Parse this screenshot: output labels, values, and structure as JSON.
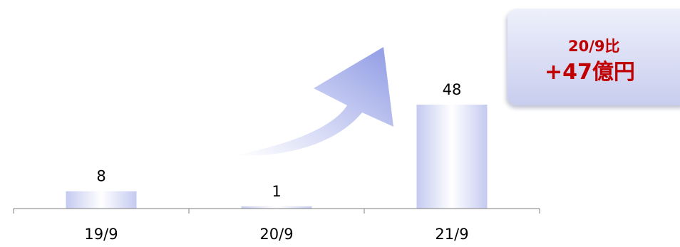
{
  "chart_data": {
    "type": "bar",
    "categories": [
      "19/9",
      "20/9",
      "21/9"
    ],
    "values": [
      8,
      1,
      48
    ],
    "data_labels": [
      "8",
      "1",
      "48"
    ],
    "title": "",
    "xlabel": "",
    "ylabel": "",
    "ylim": [
      0,
      55
    ],
    "grid": false,
    "legend": "none",
    "bar_color_edge": "#c4caf0",
    "bar_color_center": "#ffffff",
    "arrow_color": "#99a4e6"
  },
  "callout": {
    "line1": "20/9比",
    "line2": "+47億円",
    "text_color": "#c00000"
  }
}
